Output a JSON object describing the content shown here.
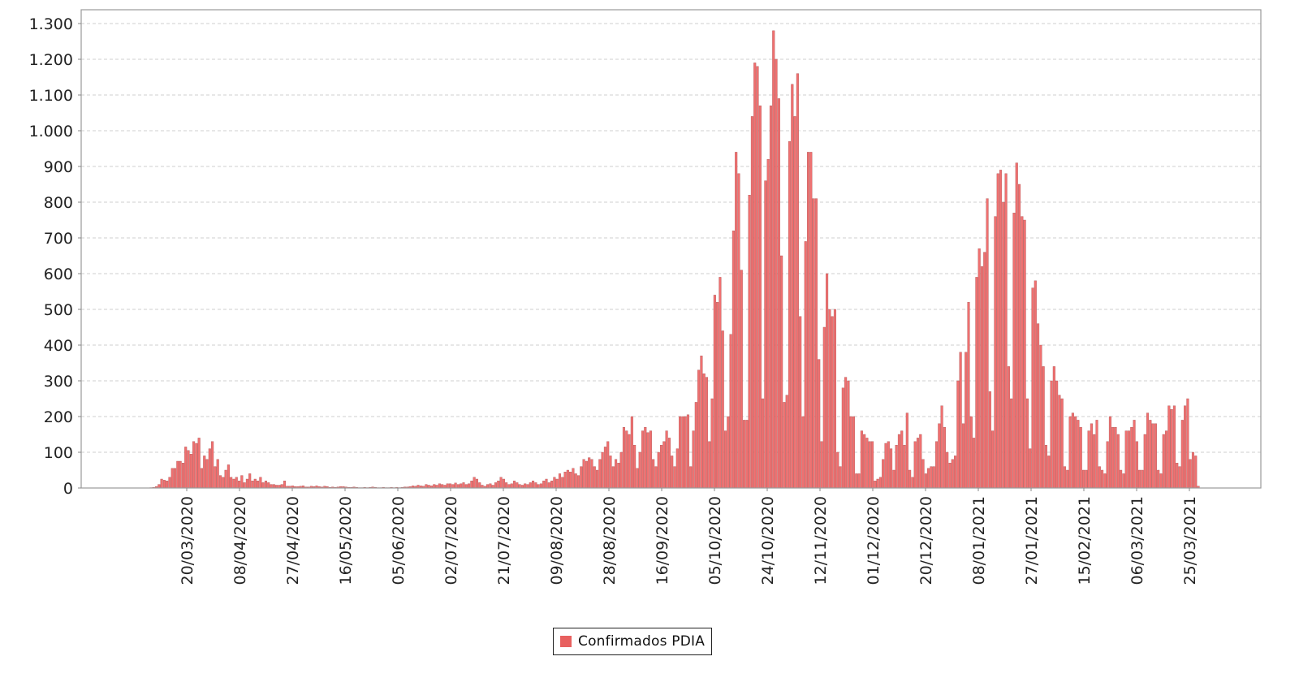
{
  "chart_data": {
    "type": "bar",
    "title": "",
    "xlabel": "",
    "ylabel": "",
    "ylim": [
      0,
      1340
    ],
    "grid": true,
    "grid_style": "horizontal dashed",
    "legend_position": "bottom-center",
    "y_ticks": [
      0,
      100,
      200,
      300,
      400,
      500,
      600,
      700,
      800,
      900,
      1000,
      1100,
      1200,
      1300
    ],
    "y_tick_labels": [
      "0",
      "100",
      "200",
      "300",
      "400",
      "500",
      "600",
      "700",
      "800",
      "900",
      "1.000",
      "1.100",
      "1.200",
      "1.300"
    ],
    "x_tick_labels": [
      "20/03/2020",
      "08/04/2020",
      "27/04/2020",
      "16/05/2020",
      "05/06/2020",
      "02/07/2020",
      "21/07/2020",
      "09/08/2020",
      "28/08/2020",
      "16/09/2020",
      "05/10/2020",
      "24/10/2020",
      "12/11/2020",
      "01/12/2020",
      "20/12/2020",
      "08/01/2021",
      "27/01/2021",
      "15/02/2021",
      "06/03/2021",
      "25/03/2021"
    ],
    "x_start_date": "04/03/2020",
    "x_end_date": "29/03/2021",
    "series": [
      {
        "name": "Confirmados PDIA",
        "color": "#f07070",
        "edge_color": "#b05858",
        "values": [
          0,
          0,
          1,
          2,
          4,
          10,
          25,
          22,
          20,
          30,
          55,
          55,
          75,
          75,
          70,
          115,
          105,
          95,
          130,
          125,
          140,
          55,
          90,
          80,
          110,
          130,
          60,
          80,
          35,
          30,
          50,
          65,
          30,
          25,
          30,
          20,
          35,
          15,
          25,
          40,
          20,
          25,
          20,
          30,
          15,
          20,
          15,
          10,
          10,
          8,
          8,
          10,
          20,
          5,
          5,
          6,
          4,
          4,
          5,
          6,
          3,
          3,
          5,
          4,
          6,
          4,
          3,
          5,
          4,
          2,
          3,
          2,
          3,
          4,
          4,
          3,
          2,
          2,
          3,
          2,
          1,
          1,
          2,
          1,
          2,
          3,
          2,
          1,
          1,
          2,
          1,
          1,
          2,
          1,
          2,
          1,
          2,
          3,
          3,
          4,
          6,
          5,
          8,
          6,
          5,
          10,
          8,
          6,
          10,
          8,
          12,
          10,
          8,
          12,
          12,
          10,
          14,
          10,
          12,
          15,
          10,
          12,
          20,
          30,
          25,
          15,
          8,
          5,
          10,
          12,
          8,
          15,
          20,
          30,
          25,
          15,
          10,
          12,
          20,
          15,
          10,
          8,
          12,
          10,
          15,
          20,
          15,
          10,
          12,
          20,
          25,
          15,
          20,
          30,
          25,
          40,
          30,
          45,
          50,
          45,
          55,
          40,
          35,
          60,
          80,
          75,
          85,
          80,
          60,
          50,
          80,
          100,
          115,
          130,
          90,
          60,
          80,
          70,
          100,
          170,
          160,
          150,
          200,
          120,
          55,
          100,
          160,
          170,
          155,
          160,
          80,
          60,
          100,
          120,
          130,
          160,
          140,
          90,
          60,
          110,
          200,
          200,
          200,
          205,
          60,
          160,
          240,
          330,
          370,
          320,
          310,
          130,
          250,
          540,
          520,
          590,
          440,
          160,
          200,
          430,
          720,
          940,
          880,
          610,
          190,
          190,
          820,
          1040,
          1190,
          1180,
          1070,
          250,
          860,
          920,
          1070,
          1280,
          1200,
          1090,
          650,
          240,
          260,
          970,
          1130,
          1040,
          1160,
          480,
          200,
          690,
          940,
          940,
          810,
          810,
          360,
          130,
          450,
          600,
          500,
          480,
          500,
          100,
          60,
          280,
          310,
          300,
          200,
          200,
          40,
          40,
          160,
          150,
          140,
          130,
          130,
          20,
          25,
          30,
          80,
          125,
          130,
          110,
          50,
          120,
          150,
          160,
          120,
          210,
          50,
          30,
          130,
          140,
          150,
          80,
          40,
          55,
          60,
          60,
          130,
          180,
          230,
          170,
          100,
          70,
          80,
          90,
          300,
          380,
          180,
          380,
          520,
          200,
          140,
          590,
          670,
          620,
          660,
          810,
          270,
          160,
          760,
          880,
          890,
          800,
          880,
          340,
          250,
          770,
          910,
          850,
          760,
          750,
          250,
          110,
          560,
          580,
          460,
          400,
          340,
          120,
          90,
          300,
          340,
          300,
          260,
          250,
          60,
          50,
          200,
          210,
          200,
          190,
          170,
          50,
          50,
          160,
          180,
          150,
          190,
          60,
          50,
          40,
          130,
          200,
          170,
          170,
          150,
          50,
          40,
          160,
          160,
          170,
          190,
          130,
          50,
          50,
          150,
          210,
          190,
          180,
          180,
          50,
          40,
          150,
          160,
          230,
          220,
          230,
          70,
          60,
          190,
          230,
          250,
          80,
          100,
          90,
          5
        ]
      }
    ]
  },
  "legend": {
    "items": [
      {
        "label": "Confirmados PDIA",
        "color": "#e8605f"
      }
    ]
  }
}
